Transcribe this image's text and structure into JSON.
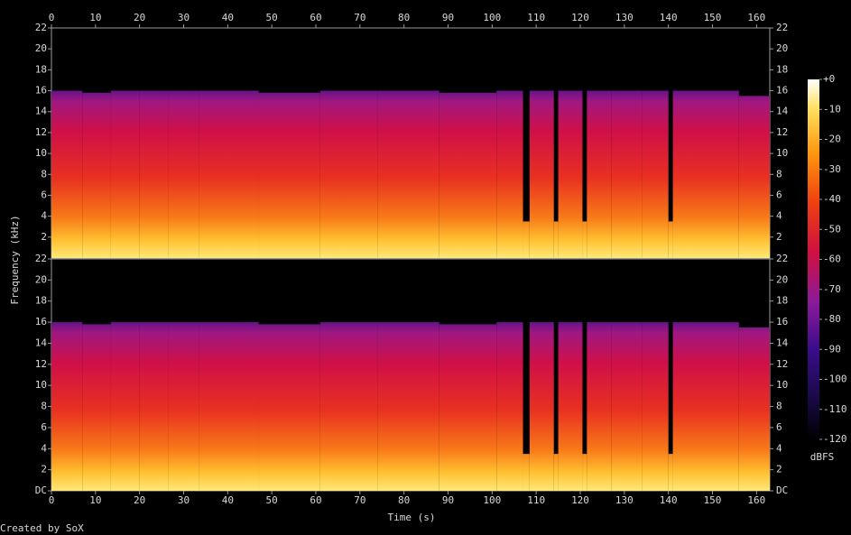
{
  "chart_data": {
    "type": "spectrogram",
    "xlabel": "Time (s)",
    "ylabel": "Frequency (kHz)",
    "credit": "Created by SoX",
    "xlim": [
      0,
      163
    ],
    "xticks": [
      0,
      10,
      20,
      30,
      40,
      50,
      60,
      70,
      80,
      90,
      100,
      110,
      120,
      130,
      140,
      150,
      160
    ],
    "x": [
      0,
      7,
      13.5,
      20,
      26.5,
      33.5,
      47,
      61,
      74,
      88,
      101,
      107,
      108.5,
      114,
      115,
      120.5,
      121.5,
      127,
      134,
      140,
      141,
      156
    ],
    "panels": [
      {
        "ylim": [
          0,
          22
        ],
        "yticks": [
          2,
          4,
          6,
          8,
          10,
          12,
          14,
          16,
          18,
          20,
          22
        ],
        "values": [
          16,
          15.8,
          16,
          16,
          16,
          16,
          15.8,
          16,
          16,
          15.8,
          16,
          3.5,
          16,
          3.5,
          16,
          3.5,
          16,
          16,
          16,
          3.5,
          16,
          15.5
        ]
      },
      {
        "ylim": [
          0,
          22
        ],
        "yticks": [
          {
            "value": 0,
            "label": "DC"
          },
          2,
          4,
          6,
          8,
          10,
          12,
          14,
          16,
          18,
          20,
          22
        ],
        "values": [
          16,
          15.8,
          16,
          16,
          16,
          16,
          15.8,
          16,
          16,
          15.8,
          16,
          3.5,
          16,
          3.5,
          16,
          3.5,
          16,
          16,
          16,
          3.5,
          16,
          15.5
        ]
      }
    ],
    "colorbar": {
      "label": "dBFS",
      "lim": [
        -120,
        0
      ],
      "ticks": [
        {
          "value": 0,
          "label": "+0"
        },
        -10,
        -20,
        -30,
        -40,
        -50,
        -60,
        -70,
        -80,
        -90,
        -100,
        -110,
        -120
      ]
    }
  }
}
